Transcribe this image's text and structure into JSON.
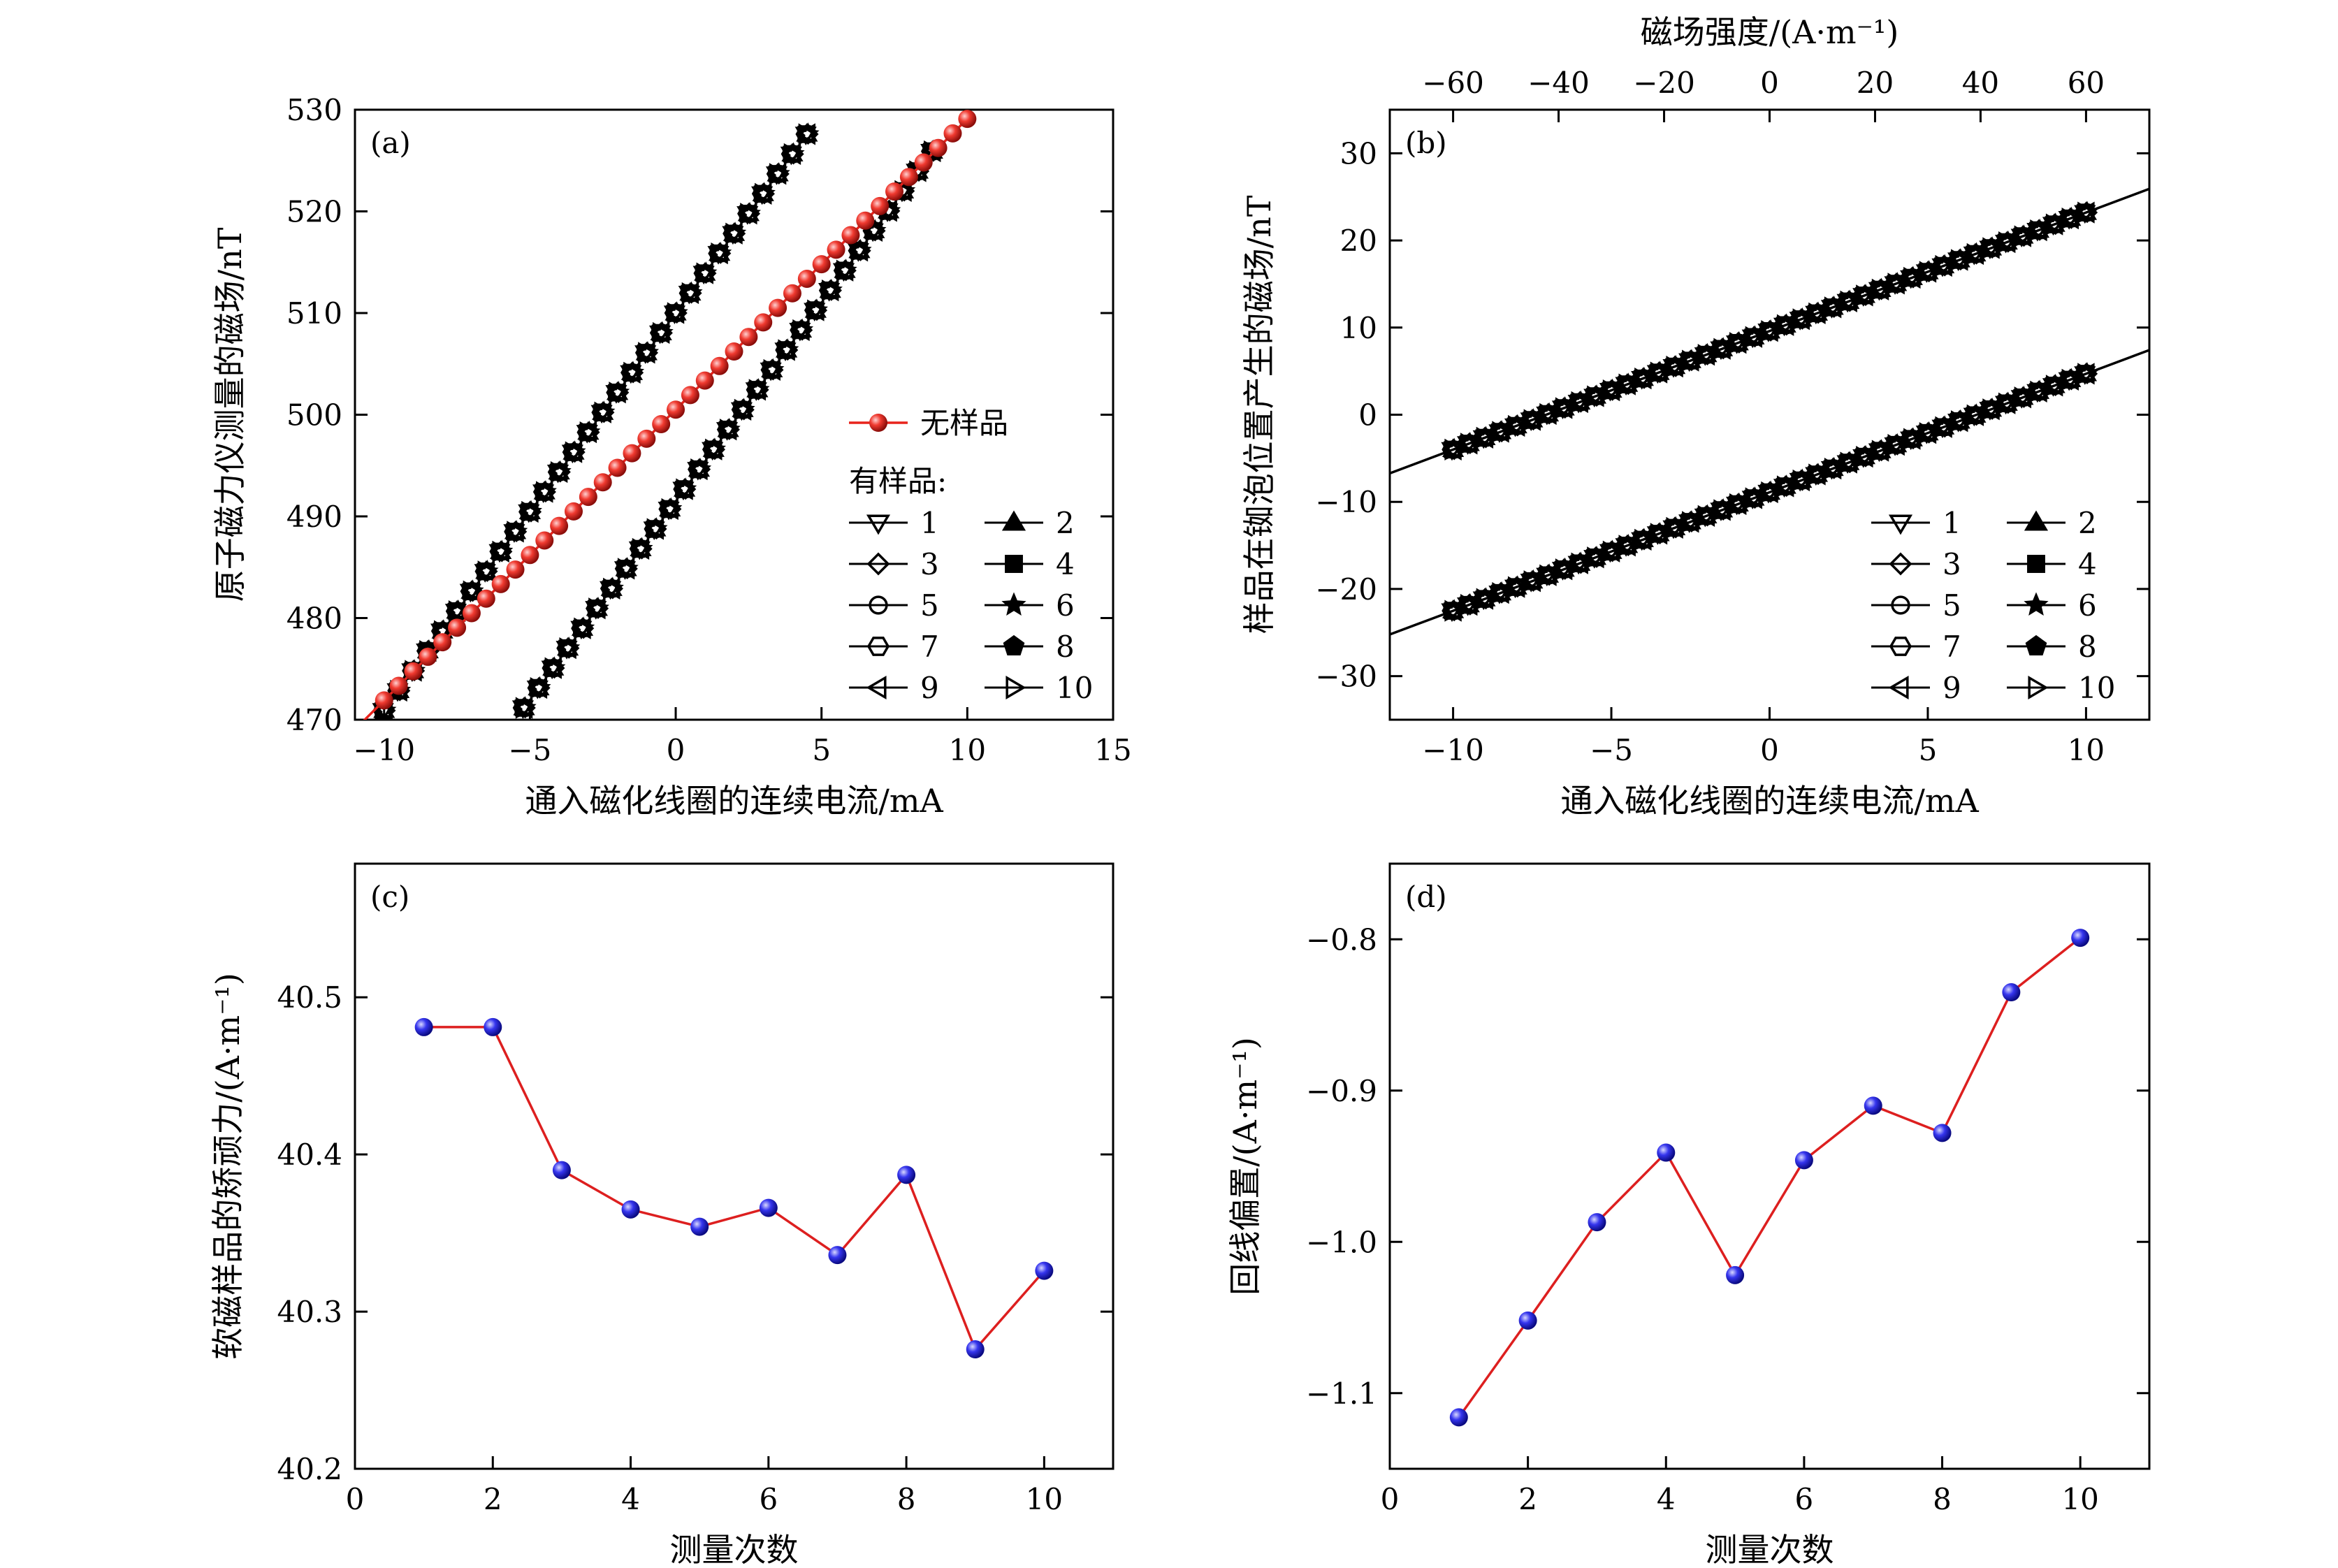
{
  "chart_data": [
    {
      "panel_label": "(a)",
      "type": "scatter",
      "xlabel": "通入磁化线圈的连续电流/mA",
      "ylabel": "原子磁力仪测量的磁场/nT",
      "xlim": [
        -11,
        15
      ],
      "ylim": [
        470,
        530
      ],
      "xticks": [
        "−10",
        "−5",
        "0",
        "5",
        "10",
        "15"
      ],
      "yticks": [
        "470",
        "480",
        "490",
        "500",
        "510",
        "520",
        "530"
      ],
      "xtick_values": [
        -10,
        -5,
        0,
        5,
        10,
        15
      ],
      "ytick_values": [
        470,
        480,
        490,
        500,
        510,
        520,
        530
      ],
      "legend": {
        "no_sample": "无样品",
        "with_sample_title": "有样品:",
        "entries": [
          "1",
          "2",
          "3",
          "4",
          "5",
          "6",
          "7",
          "8",
          "9",
          "10"
        ],
        "placement": "bottom-right"
      },
      "series": [
        {
          "name": "无样品",
          "color": "#e8231c",
          "marker": "sphere",
          "x_start": -10,
          "x_end": 10,
          "step": 0.5,
          "slope": 2.86,
          "intercept": 500.5
        },
        {
          "name": "有样品 branch up",
          "color": "#000000",
          "marker": "overlapping",
          "x_start": -10,
          "x_end": 4.8,
          "step": 0.5,
          "slope": 3.91,
          "intercept": 510.0
        },
        {
          "name": "有样品 branch down",
          "color": "#000000",
          "marker": "overlapping",
          "x_start": -5.2,
          "x_end": 9.0,
          "step": 0.5,
          "slope": 3.91,
          "intercept": 491.5
        }
      ]
    },
    {
      "panel_label": "(b)",
      "type": "scatter",
      "xlabel": "通入磁化线圈的连续电流/mA",
      "ylabel": "样品在铷泡位置产生的磁场/nT",
      "top_xlabel": "磁场强度/(A·m⁻¹)",
      "xlim": [
        -12,
        12
      ],
      "ylim": [
        -35,
        35
      ],
      "top_xlim": [
        -72,
        72
      ],
      "xticks": [
        "−10",
        "−5",
        "0",
        "5",
        "10"
      ],
      "xtick_values": [
        -10,
        -5,
        0,
        5,
        10
      ],
      "yticks": [
        "−30",
        "−20",
        "−10",
        "0",
        "10",
        "20",
        "30"
      ],
      "ytick_values": [
        -30,
        -20,
        -10,
        0,
        10,
        20,
        30
      ],
      "top_xticks": [
        "−60",
        "−40",
        "−20",
        "0",
        "20",
        "40",
        "60"
      ],
      "top_xtick_values": [
        -60,
        -40,
        -20,
        0,
        20,
        40,
        60
      ],
      "legend": {
        "entries": [
          "1",
          "2",
          "3",
          "4",
          "5",
          "6",
          "7",
          "8",
          "9",
          "10"
        ],
        "placement": "bottom-right"
      },
      "series": [
        {
          "name": "upper branch",
          "x_start": -10,
          "x_end": 10,
          "step": 0.5,
          "slope": 1.36,
          "intercept": 9.6
        },
        {
          "name": "lower branch",
          "x_start": -10,
          "x_end": 10,
          "step": 0.5,
          "slope": 1.36,
          "intercept": -8.9
        }
      ],
      "fit_lines": [
        {
          "slope": 1.36,
          "intercept": 9.6,
          "x_range": [
            -12,
            12
          ]
        },
        {
          "slope": 1.36,
          "intercept": -8.9,
          "x_range": [
            -12,
            12
          ]
        }
      ]
    },
    {
      "panel_label": "(c)",
      "type": "line",
      "xlabel": "测量次数",
      "ylabel": "软磁样品的矫顽力/(A·m⁻¹)",
      "xlim": [
        0,
        11
      ],
      "ylim": [
        40.2,
        40.585
      ],
      "xticks": [
        "0",
        "2",
        "4",
        "6",
        "8",
        "10"
      ],
      "xtick_values": [
        0,
        2,
        4,
        6,
        8,
        10
      ],
      "yticks": [
        "40.2",
        "40.3",
        "40.4",
        "40.5"
      ],
      "ytick_values": [
        40.2,
        40.3,
        40.4,
        40.5
      ],
      "x": [
        1,
        2,
        3,
        4,
        5,
        6,
        7,
        8,
        9,
        10
      ],
      "values": [
        40.481,
        40.481,
        40.39,
        40.365,
        40.354,
        40.366,
        40.336,
        40.387,
        40.276,
        40.326
      ],
      "line_color": "#dd1f1f",
      "marker_color": "#1f1fe0"
    },
    {
      "panel_label": "(d)",
      "type": "line",
      "xlabel": "测量次数",
      "ylabel": "回线偏置/(A·m⁻¹)",
      "xlim": [
        0,
        11
      ],
      "ylim": [
        -1.15,
        -0.75
      ],
      "xticks": [
        "0",
        "2",
        "4",
        "6",
        "8",
        "10"
      ],
      "xtick_values": [
        0,
        2,
        4,
        6,
        8,
        10
      ],
      "yticks": [
        "−1.1",
        "−1.0",
        "−0.9",
        "−0.8"
      ],
      "ytick_values": [
        -1.1,
        -1.0,
        -0.9,
        -0.8
      ],
      "x": [
        1,
        2,
        3,
        4,
        5,
        6,
        7,
        8,
        9,
        10
      ],
      "values": [
        -1.116,
        -1.052,
        -0.987,
        -0.941,
        -1.022,
        -0.946,
        -0.91,
        -0.928,
        -0.835,
        -0.799
      ],
      "line_color": "#dd1f1f",
      "marker_color": "#1f1fe0"
    }
  ]
}
